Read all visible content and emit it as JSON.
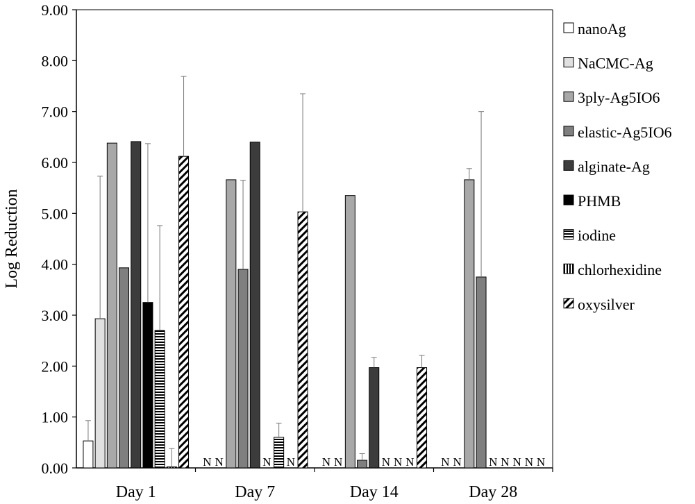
{
  "chart_data": {
    "type": "bar",
    "title": "",
    "xlabel": "",
    "ylabel": "Log Reduction",
    "ylim": [
      0,
      9
    ],
    "yticks": [
      "0.00",
      "1.00",
      "2.00",
      "3.00",
      "4.00",
      "5.00",
      "6.00",
      "7.00",
      "8.00",
      "9.00"
    ],
    "categories": [
      "Day 1",
      "Day 7",
      "Day 14",
      "Day 28"
    ],
    "not_applicable_label": "N",
    "legend_position": "right",
    "series": [
      {
        "name": "nanoAg",
        "pattern": "white",
        "values": [
          0.53,
          null,
          null,
          null
        ],
        "errors": [
          0.4,
          null,
          null,
          null
        ]
      },
      {
        "name": "NaCMC-Ag",
        "pattern": "lightgray",
        "values": [
          2.93,
          null,
          null,
          null
        ],
        "errors": [
          2.8,
          null,
          null,
          null
        ]
      },
      {
        "name": "3ply-Ag5IO6",
        "pattern": "gray",
        "values": [
          6.38,
          5.66,
          5.35,
          5.66
        ],
        "errors": [
          0,
          0,
          0,
          0.22
        ]
      },
      {
        "name": "elastic-Ag5IO6",
        "pattern": "darkgray",
        "values": [
          3.93,
          3.9,
          0.15,
          3.75
        ],
        "errors": [
          0,
          1.75,
          0.13,
          3.25
        ]
      },
      {
        "name": "alginate-Ag",
        "pattern": "dark",
        "values": [
          6.41,
          6.4,
          1.97,
          null
        ],
        "errors": [
          0,
          0,
          0.2,
          null
        ]
      },
      {
        "name": "PHMB",
        "pattern": "black",
        "values": [
          3.25,
          null,
          null,
          null
        ],
        "errors": [
          3.12,
          null,
          null,
          null
        ]
      },
      {
        "name": "iodine",
        "pattern": "hlines",
        "values": [
          2.7,
          0.6,
          null,
          null
        ],
        "errors": [
          2.06,
          0.28,
          null,
          null
        ]
      },
      {
        "name": "chlorhexidine",
        "pattern": "vlines",
        "values": [
          0.02,
          null,
          null,
          null
        ],
        "errors": [
          0.36,
          null,
          null,
          null
        ]
      },
      {
        "name": "oxysilver",
        "pattern": "diag",
        "values": [
          6.12,
          5.03,
          1.97,
          null
        ],
        "errors": [
          1.57,
          2.32,
          0.24,
          null
        ]
      }
    ]
  }
}
